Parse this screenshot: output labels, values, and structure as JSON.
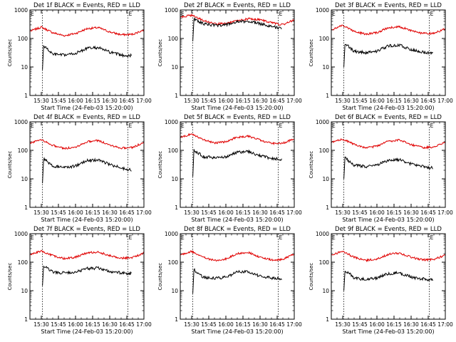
{
  "colors": {
    "events": "#000000",
    "lld": "#e00000",
    "frame": "#000000"
  },
  "chart_data": [
    {
      "type": "line",
      "title": "Det 1f BLACK = Events, RED = LLD",
      "xlabel": "Start Time (24-Feb-03 15:20:00)",
      "ylabel": "Counts/sec",
      "yscale": "log",
      "ylim": [
        1,
        1000
      ],
      "xlim_minutes": [
        0,
        100
      ],
      "x_tick_labels": [
        "15:30",
        "15:45",
        "16:00",
        "16:15",
        "16:30",
        "16:45",
        "17:00"
      ],
      "y_tick_labels": [
        "1",
        "10",
        "100",
        "1000"
      ],
      "markers": {
        "dashed_vertical_minutes": [
          11,
          86
        ],
        "corner_labels": [
          "E",
          "E"
        ]
      },
      "series": [
        {
          "name": "RED = LLD",
          "color": "#e00000",
          "x": [
            0,
            10,
            20,
            30,
            40,
            50,
            60,
            70,
            80,
            90,
            100
          ],
          "y": [
            180,
            250,
            160,
            125,
            150,
            220,
            240,
            170,
            135,
            140,
            200
          ]
        },
        {
          "name": "BLACK = Events",
          "color": "#000000",
          "x": [
            11,
            12,
            16,
            20,
            30,
            40,
            50,
            60,
            70,
            80,
            89
          ],
          "y": [
            8,
            55,
            40,
            28,
            26,
            30,
            45,
            48,
            33,
            26,
            25
          ]
        }
      ]
    },
    {
      "type": "line",
      "title": "Det 2f BLACK = Events, RED = LLD",
      "xlabel": "Start Time (24-Feb-03 15:20:00)",
      "ylabel": "Counts/sec",
      "yscale": "log",
      "ylim": [
        1,
        1000
      ],
      "xlim_minutes": [
        0,
        100
      ],
      "x_tick_labels": [
        "15:30",
        "15:45",
        "16:00",
        "16:15",
        "16:30",
        "16:45",
        "17:00"
      ],
      "y_tick_labels": [
        "1",
        "10",
        "100",
        "1000"
      ],
      "markers": {
        "dashed_vertical_minutes": [
          11,
          86
        ],
        "corner_labels": [
          "E",
          "E"
        ]
      },
      "series": [
        {
          "name": "RED = LLD",
          "color": "#e00000",
          "x": [
            0,
            10,
            20,
            30,
            40,
            50,
            60,
            70,
            80,
            90,
            100
          ],
          "y": [
            560,
            650,
            430,
            330,
            330,
            420,
            490,
            460,
            360,
            300,
            450
          ]
        },
        {
          "name": "BLACK = Events",
          "color": "#000000",
          "x": [
            11,
            12,
            16,
            20,
            30,
            40,
            50,
            60,
            70,
            80,
            89
          ],
          "y": [
            80,
            480,
            400,
            330,
            290,
            300,
            380,
            400,
            330,
            270,
            220
          ]
        }
      ]
    },
    {
      "type": "line",
      "title": "Det 3f BLACK = Events, RED = LLD",
      "xlabel": "Start Time (24-Feb-03 15:20:00)",
      "ylabel": "Counts/sec",
      "yscale": "log",
      "ylim": [
        1,
        1000
      ],
      "xlim_minutes": [
        0,
        100
      ],
      "x_tick_labels": [
        "15:30",
        "15:45",
        "16:00",
        "16:15",
        "16:30",
        "16:45",
        "17:00"
      ],
      "y_tick_labels": [
        "1",
        "10",
        "100",
        "1000"
      ],
      "markers": {
        "dashed_vertical_minutes": [
          11,
          86
        ],
        "corner_labels": [
          "E",
          "E"
        ]
      },
      "series": [
        {
          "name": "RED = LLD",
          "color": "#e00000",
          "x": [
            0,
            10,
            20,
            30,
            40,
            50,
            60,
            70,
            80,
            90,
            100
          ],
          "y": [
            200,
            290,
            180,
            140,
            160,
            240,
            260,
            190,
            150,
            150,
            220
          ]
        },
        {
          "name": "BLACK = Events",
          "color": "#000000",
          "x": [
            11,
            12,
            16,
            20,
            30,
            40,
            50,
            60,
            70,
            80,
            89
          ],
          "y": [
            10,
            65,
            50,
            35,
            32,
            36,
            55,
            58,
            40,
            34,
            30
          ]
        }
      ]
    },
    {
      "type": "line",
      "title": "Det 4f BLACK = Events, RED = LLD",
      "xlabel": "Start Time (24-Feb-03 15:20:00)",
      "ylabel": "Counts/sec",
      "yscale": "log",
      "ylim": [
        1,
        1000
      ],
      "xlim_minutes": [
        0,
        100
      ],
      "x_tick_labels": [
        "15:30",
        "15:45",
        "16:00",
        "16:15",
        "16:30",
        "16:45",
        "17:00"
      ],
      "y_tick_labels": [
        "1",
        "10",
        "100",
        "1000"
      ],
      "markers": {
        "dashed_vertical_minutes": [
          11,
          86
        ],
        "corner_labels": [
          "E",
          "E"
        ]
      },
      "series": [
        {
          "name": "RED = LLD",
          "color": "#e00000",
          "x": [
            0,
            10,
            20,
            30,
            40,
            50,
            60,
            70,
            80,
            90,
            100
          ],
          "y": [
            180,
            240,
            150,
            115,
            130,
            200,
            220,
            155,
            120,
            125,
            190
          ]
        },
        {
          "name": "BLACK = Events",
          "color": "#000000",
          "x": [
            11,
            12,
            16,
            20,
            30,
            40,
            50,
            60,
            70,
            80,
            89
          ],
          "y": [
            7,
            50,
            38,
            28,
            25,
            28,
            44,
            46,
            32,
            24,
            20
          ]
        }
      ]
    },
    {
      "type": "line",
      "title": "Det 5f BLACK = Events, RED = LLD",
      "xlabel": "Start Time (24-Feb-03 15:20:00)",
      "ylabel": "Counts/sec",
      "yscale": "log",
      "ylim": [
        1,
        1000
      ],
      "xlim_minutes": [
        0,
        100
      ],
      "x_tick_labels": [
        "15:30",
        "15:45",
        "16:00",
        "16:15",
        "16:30",
        "16:45",
        "17:00"
      ],
      "y_tick_labels": [
        "1",
        "10",
        "100",
        "1000"
      ],
      "markers": {
        "dashed_vertical_minutes": [
          11,
          86
        ],
        "corner_labels": [
          "E",
          "E"
        ]
      },
      "series": [
        {
          "name": "RED = LLD",
          "color": "#e00000",
          "x": [
            0,
            10,
            20,
            30,
            40,
            50,
            60,
            70,
            80,
            90,
            100
          ],
          "y": [
            280,
            380,
            240,
            180,
            200,
            290,
            310,
            230,
            175,
            180,
            250
          ]
        },
        {
          "name": "BLACK = Events",
          "color": "#000000",
          "x": [
            11,
            12,
            16,
            20,
            30,
            40,
            50,
            60,
            70,
            80,
            89
          ],
          "y": [
            12,
            100,
            80,
            60,
            55,
            60,
            85,
            90,
            65,
            52,
            48
          ]
        }
      ]
    },
    {
      "type": "line",
      "title": "Det 6f BLACK = Events, RED = LLD",
      "xlabel": "Start Time (24-Feb-03 15:20:00)",
      "ylabel": "Counts/sec",
      "yscale": "log",
      "ylim": [
        1,
        1000
      ],
      "xlim_minutes": [
        0,
        100
      ],
      "x_tick_labels": [
        "15:30",
        "15:45",
        "16:00",
        "16:15",
        "16:30",
        "16:45",
        "17:00"
      ],
      "y_tick_labels": [
        "1",
        "10",
        "100",
        "1000"
      ],
      "markers": {
        "dashed_vertical_minutes": [
          11,
          86
        ],
        "corner_labels": [
          "E",
          "E"
        ]
      },
      "series": [
        {
          "name": "RED = LLD",
          "color": "#e00000",
          "x": [
            0,
            10,
            20,
            30,
            40,
            50,
            60,
            70,
            80,
            90,
            100
          ],
          "y": [
            190,
            250,
            160,
            120,
            140,
            210,
            230,
            160,
            125,
            130,
            200
          ]
        },
        {
          "name": "BLACK = Events",
          "color": "#000000",
          "x": [
            11,
            12,
            16,
            20,
            30,
            40,
            50,
            60,
            70,
            80,
            89
          ],
          "y": [
            10,
            55,
            40,
            30,
            27,
            30,
            45,
            47,
            33,
            27,
            24
          ]
        }
      ]
    },
    {
      "type": "line",
      "title": "Det 7f BLACK = Events, RED = LLD",
      "xlabel": "Start Time (24-Feb-03 15:20:00)",
      "ylabel": "Counts/sec",
      "yscale": "log",
      "ylim": [
        1,
        1000
      ],
      "xlim_minutes": [
        0,
        100
      ],
      "x_tick_labels": [
        "15:30",
        "15:45",
        "16:00",
        "16:15",
        "16:30",
        "16:45",
        "17:00"
      ],
      "y_tick_labels": [
        "1",
        "10",
        "100",
        "1000"
      ],
      "markers": {
        "dashed_vertical_minutes": [
          11,
          86
        ],
        "corner_labels": [
          "E",
          "E"
        ]
      },
      "series": [
        {
          "name": "RED = LLD",
          "color": "#e00000",
          "x": [
            0,
            10,
            20,
            30,
            40,
            50,
            60,
            70,
            80,
            90,
            100
          ],
          "y": [
            180,
            250,
            170,
            135,
            150,
            210,
            230,
            170,
            140,
            145,
            210
          ]
        },
        {
          "name": "BLACK = Events",
          "color": "#000000",
          "x": [
            11,
            12,
            16,
            20,
            30,
            40,
            50,
            60,
            70,
            80,
            89
          ],
          "y": [
            15,
            70,
            60,
            45,
            42,
            45,
            60,
            62,
            48,
            42,
            40
          ]
        }
      ]
    },
    {
      "type": "line",
      "title": "Det 8f BLACK = Events, RED = LLD",
      "xlabel": "Start Time (24-Feb-03 15:20:00)",
      "ylabel": "Counts/sec",
      "yscale": "log",
      "ylim": [
        1,
        1000
      ],
      "xlim_minutes": [
        0,
        100
      ],
      "x_tick_labels": [
        "15:30",
        "15:45",
        "16:00",
        "16:15",
        "16:30",
        "16:45",
        "17:00"
      ],
      "y_tick_labels": [
        "1",
        "10",
        "100",
        "1000"
      ],
      "markers": {
        "dashed_vertical_minutes": [
          11,
          86
        ],
        "corner_labels": [
          "E",
          "E"
        ]
      },
      "series": [
        {
          "name": "RED = LLD",
          "color": "#e00000",
          "x": [
            0,
            10,
            20,
            30,
            40,
            50,
            60,
            70,
            80,
            90,
            100
          ],
          "y": [
            180,
            240,
            150,
            115,
            130,
            200,
            220,
            150,
            120,
            125,
            200
          ]
        },
        {
          "name": "BLACK = Events",
          "color": "#000000",
          "x": [
            11,
            12,
            16,
            20,
            30,
            40,
            50,
            60,
            70,
            80,
            89
          ],
          "y": [
            8,
            55,
            40,
            30,
            27,
            30,
            45,
            46,
            32,
            28,
            26
          ]
        }
      ]
    },
    {
      "type": "line",
      "title": "Det 9f BLACK = Events, RED = LLD",
      "xlabel": "Start Time (24-Feb-03 15:20:00)",
      "ylabel": "Counts/sec",
      "yscale": "log",
      "ylim": [
        1,
        1000
      ],
      "xlim_minutes": [
        0,
        100
      ],
      "x_tick_labels": [
        "15:30",
        "15:45",
        "16:00",
        "16:15",
        "16:30",
        "16:45",
        "17:00"
      ],
      "y_tick_labels": [
        "1",
        "10",
        "100",
        "1000"
      ],
      "markers": {
        "dashed_vertical_minutes": [
          11,
          86
        ],
        "corner_labels": [
          "E",
          "E"
        ]
      },
      "series": [
        {
          "name": "RED = LLD",
          "color": "#e00000",
          "x": [
            0,
            10,
            20,
            30,
            40,
            50,
            60,
            70,
            80,
            90,
            100
          ],
          "y": [
            180,
            240,
            150,
            115,
            130,
            190,
            210,
            150,
            120,
            125,
            180
          ]
        },
        {
          "name": "BLACK = Events",
          "color": "#000000",
          "x": [
            11,
            12,
            16,
            20,
            30,
            40,
            50,
            60,
            70,
            80,
            89
          ],
          "y": [
            10,
            50,
            40,
            28,
            25,
            28,
            40,
            42,
            30,
            26,
            24
          ]
        }
      ]
    }
  ]
}
